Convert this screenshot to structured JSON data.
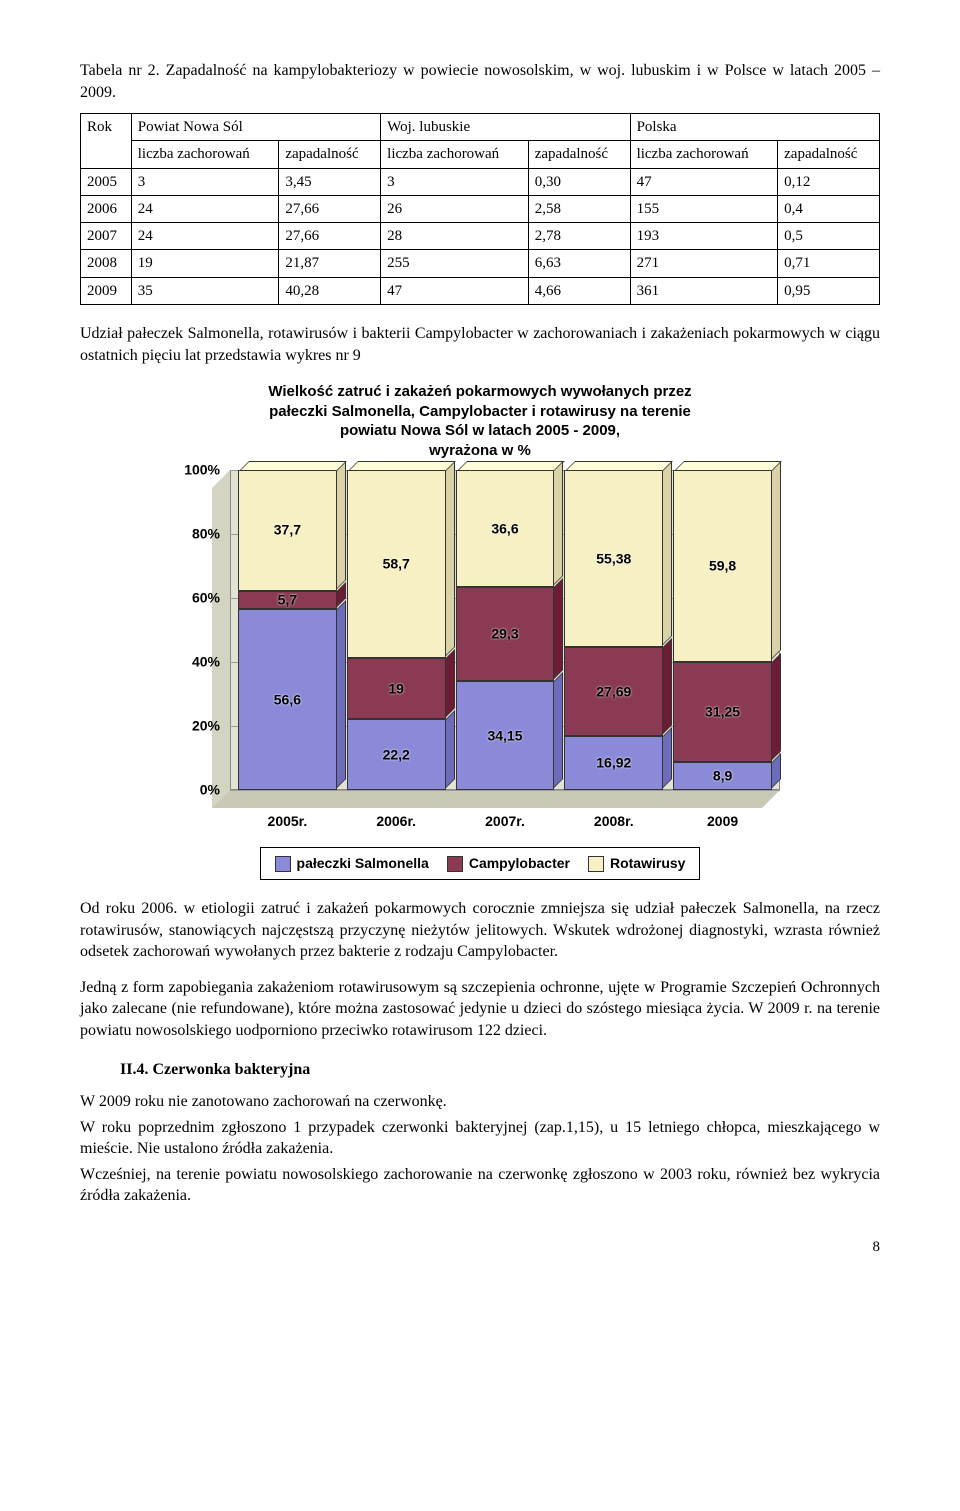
{
  "table_caption": "Tabela nr 2. Zapadalność na kampylobakteriozy w powiecie nowosolskim, w woj. lubuskim i w Polsce w latach 2005 – 2009.",
  "table": {
    "col_groups": [
      "Rok",
      "Powiat Nowa Sól",
      "Woj. lubuskie",
      "Polska"
    ],
    "sub_headers": [
      "liczba zachorowań",
      "zapadalność",
      "liczba zachorowań",
      "zapadalność",
      "liczba zachorowań",
      "zapadalność"
    ],
    "rows": [
      [
        "2005",
        "3",
        "3,45",
        "3",
        "0,30",
        "47",
        "0,12"
      ],
      [
        "2006",
        "24",
        "27,66",
        "26",
        "2,58",
        "155",
        "0,4"
      ],
      [
        "2007",
        "24",
        "27,66",
        "28",
        "2,78",
        "193",
        "0,5"
      ],
      [
        "2008",
        "19",
        "21,87",
        "255",
        "6,63",
        "271",
        "0,71"
      ],
      [
        "2009",
        "35",
        "40,28",
        "47",
        "4,66",
        "361",
        "0,95"
      ]
    ]
  },
  "para1": "Udział pałeczek Salmonella, rotawirusów i bakterii Campylobacter w zachorowaniach i zakażeniach pokarmowych w ciągu ostatnich pięciu lat przedstawia wykres nr 9",
  "chart": {
    "title_lines": [
      "Wielkość zatruć i zakażeń pokarmowych wywołanych przez",
      "pałeczki Salmonella, Campylobacter i rotawirusy na terenie",
      "powiatu  Nowa Sól w latach 2005 - 2009,",
      "wyrażona w %"
    ],
    "type": "stacked-bar-3d",
    "categories": [
      "2005r.",
      "2006r.",
      "2007r.",
      "2008r.",
      "2009"
    ],
    "series": [
      {
        "name": "pałeczki Salmonella",
        "color": "#8a8ad8",
        "values": [
          56.6,
          22.2,
          34.15,
          16.92,
          8.9
        ],
        "labels": [
          "56,6",
          "22,2",
          "34,15",
          "16,92",
          "8,9"
        ]
      },
      {
        "name": "Campylobacter",
        "color": "#8a3a52",
        "values": [
          5.7,
          19.0,
          29.3,
          27.69,
          31.25
        ],
        "labels": [
          "5,7",
          "19",
          "29,3",
          "27,69",
          "31,25"
        ]
      },
      {
        "name": "Rotawirusy",
        "color": "#f6f0c4",
        "values": [
          37.7,
          58.7,
          36.6,
          55.38,
          59.8
        ],
        "labels": [
          "37,7",
          "58,7",
          "36,6",
          "55,38",
          "59,8"
        ]
      }
    ],
    "yticks": [
      0,
      20,
      40,
      60,
      80,
      100
    ],
    "ytick_labels": [
      "0%",
      "20%",
      "40%",
      "60%",
      "80%",
      "100%"
    ],
    "ylim": [
      0,
      100
    ],
    "back_color": "#e3e3d1",
    "floor_color": "#c9c9b8",
    "grid_color": "#9c9c9c",
    "font_family": "Arial",
    "title_fontsize": 15,
    "label_fontsize": 14
  },
  "legend_items": [
    "pałeczki Salmonella",
    "Campylobacter",
    "Rotawirusy"
  ],
  "para2": "Od roku 2006. w etiologii zatruć i  zakażeń pokarmowych corocznie zmniejsza się udział pałeczek Salmonella, na rzecz rotawirusów, stanowiących najczęstszą  przyczynę nieżytów jelitowych. Wskutek wdrożonej diagnostyki, wzrasta  również odsetek zachorowań wywołanych przez  bakterie z rodzaju Campylobacter.",
  "para3": "Jedną z form zapobiegania zakażeniom rotawirusowym są szczepienia ochronne, ujęte w Programie Szczepień Ochronnych jako zalecane (nie refundowane), które  można zastosować jedynie u dzieci do szóstego miesiąca życia. W 2009 r. na terenie powiatu nowosolskiego uodporniono przeciwko rotawirusom 122 dzieci.",
  "section_heading": "II.4. Czerwonka bakteryjna",
  "para4": "W 2009 roku nie zanotowano zachorowań na czerwonkę.",
  "para5": "W roku poprzednim zgłoszono  1 przypadek czerwonki bakteryjnej (zap.1,15), u 15 letniego chłopca, mieszkającego  w mieście. Nie ustalono źródła zakażenia.",
  "para6": "Wcześniej, na terenie powiatu nowosolskiego zachorowanie na czerwonkę zgłoszono w 2003 roku,  również bez wykrycia źródła zakażenia.",
  "page_number": "8"
}
